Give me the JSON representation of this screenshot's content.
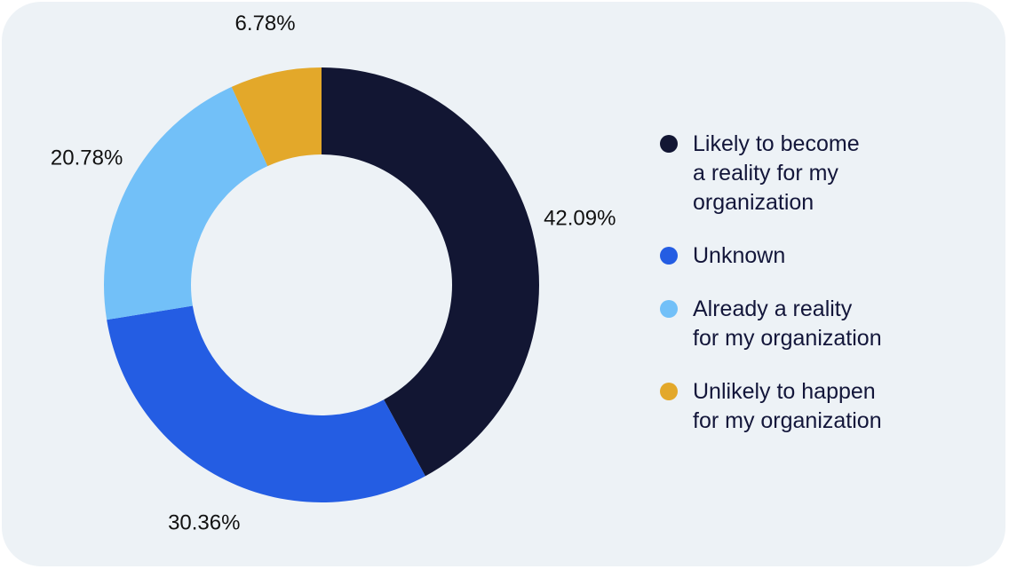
{
  "chart_data": {
    "type": "pie",
    "donut": true,
    "title": "",
    "slices": [
      {
        "label": "Likely to become\na reality for my\norganization",
        "value": 42.09,
        "value_label": "42.09%",
        "color": "#121633"
      },
      {
        "label": "Unknown",
        "value": 30.36,
        "value_label": "30.36%",
        "color": "#245de3"
      },
      {
        "label": "Already a reality\nfor my organization",
        "value": 20.78,
        "value_label": "20.78%",
        "color": "#72c0f8"
      },
      {
        "label": "Unlikely to happen\nfor my organization",
        "value": 6.78,
        "value_label": "6.78%",
        "color": "#e3a82a"
      }
    ],
    "start_angle_deg": 0,
    "direction": "clockwise",
    "legend_position": "right"
  },
  "colors": {
    "card_background": "#edf2f6",
    "text": "#13163a"
  }
}
